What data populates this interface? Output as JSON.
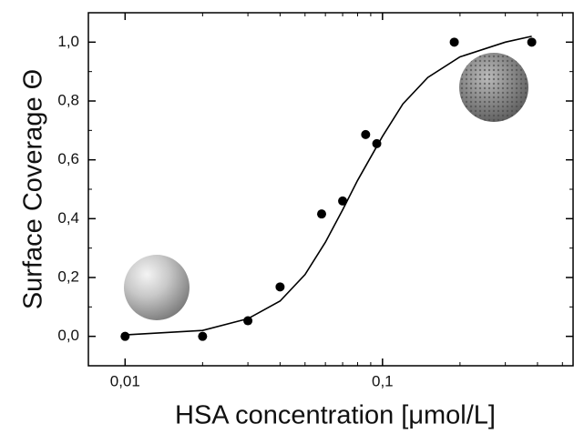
{
  "chart_data": {
    "type": "scatter",
    "x_label": "HSA concentration [μmol/L]",
    "y_label": "Surface Coverage Θ",
    "x_log": true,
    "xlim": [
      0.0072,
      0.55
    ],
    "ylim": [
      -0.1,
      1.1
    ],
    "xticks": [
      {
        "value": 0.01,
        "label": "0,01"
      },
      {
        "value": 0.1,
        "label": "0,1"
      }
    ],
    "xminorticks": [
      0.02,
      0.03,
      0.04,
      0.05,
      0.06,
      0.07,
      0.08,
      0.09,
      0.2,
      0.3,
      0.4,
      0.5
    ],
    "yticks": [
      {
        "value": 0,
        "label": "0,0"
      },
      {
        "value": 0.2,
        "label": "0,2"
      },
      {
        "value": 0.4,
        "label": "0,4"
      },
      {
        "value": 0.6,
        "label": "0,6"
      },
      {
        "value": 0.8,
        "label": "0,8"
      },
      {
        "value": 1.0,
        "label": "1,0"
      }
    ],
    "yminorticks": [
      -0.1,
      0.1,
      0.3,
      0.5,
      0.7,
      0.9,
      1.1
    ],
    "series": [
      {
        "type": "scatter",
        "color": "#000000",
        "x": [
          0.01,
          0.02,
          0.03,
          0.04,
          0.058,
          0.07,
          0.086,
          0.095,
          0.19,
          0.38
        ],
        "values": [
          0,
          0,
          0.053,
          0.168,
          0.416,
          0.46,
          0.686,
          0.655,
          1.0,
          1.0
        ]
      },
      {
        "type": "line",
        "color": "#000000",
        "x": [
          0.01,
          0.02,
          0.03,
          0.04,
          0.05,
          0.06,
          0.07,
          0.08,
          0.1,
          0.12,
          0.15,
          0.2,
          0.3,
          0.38
        ],
        "values": [
          0.005,
          0.02,
          0.06,
          0.12,
          0.21,
          0.32,
          0.43,
          0.53,
          0.68,
          0.79,
          0.88,
          0.95,
          1.0,
          1.02
        ]
      }
    ]
  }
}
